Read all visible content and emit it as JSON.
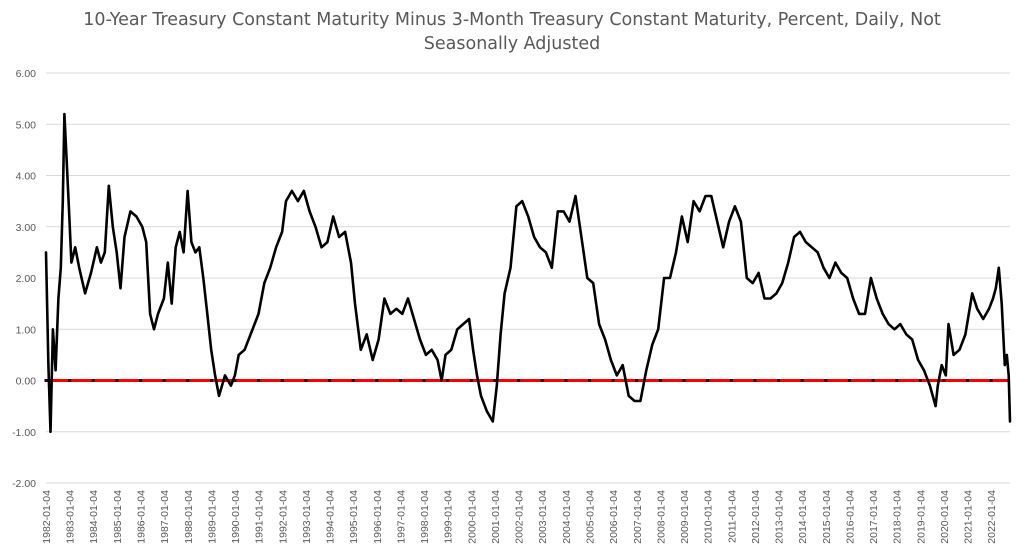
{
  "chart_data": {
    "type": "line",
    "title_line1": "10-Year Treasury Constant Maturity Minus 3-Month Treasury Constant Maturity, Percent, Daily, Not",
    "title_line2": "Seasonally Adjusted",
    "xlabel": "",
    "ylabel": "",
    "ylim": [
      -2.0,
      6.0
    ],
    "yticks": [
      "6.00",
      "5.00",
      "4.00",
      "3.00",
      "2.00",
      "1.00",
      "0.00",
      "-1.00",
      "-2.00"
    ],
    "ytick_values": [
      6,
      5,
      4,
      3,
      2,
      1,
      0,
      -1,
      -2
    ],
    "grid": true,
    "legend": "none",
    "xticks": [
      "1982-01-04",
      "1983-01-04",
      "1984-01-04",
      "1985-01-04",
      "1986-01-04",
      "1987-01-04",
      "1988-01-04",
      "1989-01-04",
      "1990-01-04",
      "1991-01-04",
      "1992-01-04",
      "1993-01-04",
      "1994-01-04",
      "1995-01-04",
      "1996-01-04",
      "1997-01-04",
      "1998-01-04",
      "1999-01-04",
      "2000-01-04",
      "2001-01-04",
      "2002-01-04",
      "2003-01-04",
      "2004-01-04",
      "2005-01-04",
      "2006-01-04",
      "2007-01-04",
      "2008-01-04",
      "2009-01-04",
      "2010-01-04",
      "2011-01-04",
      "2012-01-04",
      "2013-01-04",
      "2014-01-04",
      "2015-01-04",
      "2016-01-04",
      "2017-01-04",
      "2018-01-04",
      "2019-01-04",
      "2020-01-04",
      "2021-01-04",
      "2022-01-04"
    ],
    "x_range": [
      "1982-01-04",
      "2022-10-21"
    ],
    "series": [
      {
        "color": "#000000",
        "points": [
          [
            "1982-01-04",
            2.5
          ],
          [
            "1982-02-10",
            0.3
          ],
          [
            "1982-03-15",
            -1.0
          ],
          [
            "1982-04-20",
            1.0
          ],
          [
            "1982-06-01",
            0.2
          ],
          [
            "1982-07-15",
            1.6
          ],
          [
            "1982-08-20",
            2.2
          ],
          [
            "1982-09-20",
            3.5
          ],
          [
            "1982-10-15",
            5.2
          ],
          [
            "1982-11-15",
            4.4
          ],
          [
            "1982-12-20",
            3.5
          ],
          [
            "1983-02-01",
            2.3
          ],
          [
            "1983-04-01",
            2.6
          ],
          [
            "1983-06-01",
            2.2
          ],
          [
            "1983-09-01",
            1.7
          ],
          [
            "1983-12-01",
            2.1
          ],
          [
            "1984-03-01",
            2.6
          ],
          [
            "1984-05-01",
            2.3
          ],
          [
            "1984-07-01",
            2.5
          ],
          [
            "1984-09-01",
            3.8
          ],
          [
            "1984-11-01",
            3.0
          ],
          [
            "1985-01-01",
            2.5
          ],
          [
            "1985-03-01",
            1.8
          ],
          [
            "1985-05-01",
            2.8
          ],
          [
            "1985-08-01",
            3.3
          ],
          [
            "1985-11-01",
            3.2
          ],
          [
            "1986-02-01",
            3.0
          ],
          [
            "1986-04-01",
            2.7
          ],
          [
            "1986-06-01",
            1.3
          ],
          [
            "1986-08-01",
            1.0
          ],
          [
            "1986-10-01",
            1.3
          ],
          [
            "1987-01-01",
            1.6
          ],
          [
            "1987-03-01",
            2.3
          ],
          [
            "1987-05-01",
            1.5
          ],
          [
            "1987-07-01",
            2.6
          ],
          [
            "1987-09-01",
            2.9
          ],
          [
            "1987-11-01",
            2.5
          ],
          [
            "1988-01-01",
            3.7
          ],
          [
            "1988-03-01",
            2.7
          ],
          [
            "1988-05-01",
            2.5
          ],
          [
            "1988-07-01",
            2.6
          ],
          [
            "1988-09-01",
            2.0
          ],
          [
            "1988-11-01",
            1.3
          ],
          [
            "1989-01-01",
            0.6
          ],
          [
            "1989-03-01",
            0.1
          ],
          [
            "1989-05-01",
            -0.3
          ],
          [
            "1989-08-01",
            0.1
          ],
          [
            "1989-11-01",
            -0.1
          ],
          [
            "1990-01-01",
            0.1
          ],
          [
            "1990-03-01",
            0.5
          ],
          [
            "1990-06-01",
            0.6
          ],
          [
            "1990-09-01",
            0.9
          ],
          [
            "1991-01-01",
            1.3
          ],
          [
            "1991-04-01",
            1.9
          ],
          [
            "1991-07-01",
            2.2
          ],
          [
            "1991-10-01",
            2.6
          ],
          [
            "1992-01-01",
            2.9
          ],
          [
            "1992-03-01",
            3.5
          ],
          [
            "1992-06-01",
            3.7
          ],
          [
            "1992-09-01",
            3.5
          ],
          [
            "1992-12-01",
            3.7
          ],
          [
            "1993-03-01",
            3.3
          ],
          [
            "1993-06-01",
            3.0
          ],
          [
            "1993-09-01",
            2.6
          ],
          [
            "1993-12-01",
            2.7
          ],
          [
            "1994-03-01",
            3.2
          ],
          [
            "1994-06-01",
            2.8
          ],
          [
            "1994-09-01",
            2.9
          ],
          [
            "1994-12-01",
            2.3
          ],
          [
            "1995-02-01",
            1.5
          ],
          [
            "1995-05-01",
            0.6
          ],
          [
            "1995-08-01",
            0.9
          ],
          [
            "1995-11-01",
            0.4
          ],
          [
            "1996-02-01",
            0.8
          ],
          [
            "1996-05-01",
            1.6
          ],
          [
            "1996-08-01",
            1.3
          ],
          [
            "1996-11-01",
            1.4
          ],
          [
            "1997-02-01",
            1.3
          ],
          [
            "1997-05-01",
            1.6
          ],
          [
            "1997-08-01",
            1.2
          ],
          [
            "1997-11-01",
            0.8
          ],
          [
            "1998-02-01",
            0.5
          ],
          [
            "1998-05-01",
            0.6
          ],
          [
            "1998-08-01",
            0.4
          ],
          [
            "1998-10-01",
            0.0
          ],
          [
            "1998-12-01",
            0.5
          ],
          [
            "1999-03-01",
            0.6
          ],
          [
            "1999-06-01",
            1.0
          ],
          [
            "1999-09-01",
            1.1
          ],
          [
            "1999-12-01",
            1.2
          ],
          [
            "2000-02-01",
            0.6
          ],
          [
            "2000-04-01",
            0.1
          ],
          [
            "2000-06-01",
            -0.3
          ],
          [
            "2000-09-01",
            -0.6
          ],
          [
            "2000-12-01",
            -0.8
          ],
          [
            "2001-02-01",
            -0.1
          ],
          [
            "2001-04-01",
            0.9
          ],
          [
            "2001-06-01",
            1.7
          ],
          [
            "2001-09-01",
            2.2
          ],
          [
            "2001-12-01",
            3.4
          ],
          [
            "2002-03-01",
            3.5
          ],
          [
            "2002-06-01",
            3.2
          ],
          [
            "2002-09-01",
            2.8
          ],
          [
            "2002-12-01",
            2.6
          ],
          [
            "2003-03-01",
            2.5
          ],
          [
            "2003-06-01",
            2.2
          ],
          [
            "2003-09-01",
            3.3
          ],
          [
            "2003-12-01",
            3.3
          ],
          [
            "2004-03-01",
            3.1
          ],
          [
            "2004-06-01",
            3.6
          ],
          [
            "2004-09-01",
            2.8
          ],
          [
            "2004-12-01",
            2.0
          ],
          [
            "2005-03-01",
            1.9
          ],
          [
            "2005-06-01",
            1.1
          ],
          [
            "2005-09-01",
            0.8
          ],
          [
            "2005-12-01",
            0.4
          ],
          [
            "2006-03-01",
            0.1
          ],
          [
            "2006-06-01",
            0.3
          ],
          [
            "2006-09-01",
            -0.3
          ],
          [
            "2006-12-01",
            -0.4
          ],
          [
            "2007-03-01",
            -0.4
          ],
          [
            "2007-06-01",
            0.2
          ],
          [
            "2007-09-01",
            0.7
          ],
          [
            "2007-12-01",
            1.0
          ],
          [
            "2008-03-01",
            2.0
          ],
          [
            "2008-06-01",
            2.0
          ],
          [
            "2008-09-01",
            2.5
          ],
          [
            "2008-12-01",
            3.2
          ],
          [
            "2009-03-01",
            2.7
          ],
          [
            "2009-06-01",
            3.5
          ],
          [
            "2009-09-01",
            3.3
          ],
          [
            "2009-12-01",
            3.6
          ],
          [
            "2010-03-01",
            3.6
          ],
          [
            "2010-06-01",
            3.1
          ],
          [
            "2010-09-01",
            2.6
          ],
          [
            "2010-12-01",
            3.1
          ],
          [
            "2011-03-01",
            3.4
          ],
          [
            "2011-06-01",
            3.1
          ],
          [
            "2011-09-01",
            2.0
          ],
          [
            "2011-12-01",
            1.9
          ],
          [
            "2012-03-01",
            2.1
          ],
          [
            "2012-06-01",
            1.6
          ],
          [
            "2012-09-01",
            1.6
          ],
          [
            "2012-12-01",
            1.7
          ],
          [
            "2013-03-01",
            1.9
          ],
          [
            "2013-06-01",
            2.3
          ],
          [
            "2013-09-01",
            2.8
          ],
          [
            "2013-12-01",
            2.9
          ],
          [
            "2014-03-01",
            2.7
          ],
          [
            "2014-06-01",
            2.6
          ],
          [
            "2014-09-01",
            2.5
          ],
          [
            "2014-12-01",
            2.2
          ],
          [
            "2015-03-01",
            2.0
          ],
          [
            "2015-06-01",
            2.3
          ],
          [
            "2015-09-01",
            2.1
          ],
          [
            "2015-12-01",
            2.0
          ],
          [
            "2016-03-01",
            1.6
          ],
          [
            "2016-06-01",
            1.3
          ],
          [
            "2016-09-01",
            1.3
          ],
          [
            "2016-12-01",
            2.0
          ],
          [
            "2017-03-01",
            1.6
          ],
          [
            "2017-06-01",
            1.3
          ],
          [
            "2017-09-01",
            1.1
          ],
          [
            "2017-12-01",
            1.0
          ],
          [
            "2018-03-01",
            1.1
          ],
          [
            "2018-06-01",
            0.9
          ],
          [
            "2018-09-01",
            0.8
          ],
          [
            "2018-12-01",
            0.4
          ],
          [
            "2019-03-01",
            0.2
          ],
          [
            "2019-06-01",
            -0.1
          ],
          [
            "2019-08-28",
            -0.5
          ],
          [
            "2019-10-01",
            -0.1
          ],
          [
            "2019-12-01",
            0.3
          ],
          [
            "2020-02-01",
            0.1
          ],
          [
            "2020-03-15",
            1.1
          ],
          [
            "2020-06-01",
            0.5
          ],
          [
            "2020-09-01",
            0.6
          ],
          [
            "2020-12-01",
            0.9
          ],
          [
            "2021-03-15",
            1.7
          ],
          [
            "2021-06-01",
            1.4
          ],
          [
            "2021-09-01",
            1.2
          ],
          [
            "2021-12-01",
            1.4
          ],
          [
            "2022-02-01",
            1.6
          ],
          [
            "2022-03-15",
            1.8
          ],
          [
            "2022-05-01",
            2.2
          ],
          [
            "2022-06-15",
            1.5
          ],
          [
            "2022-08-01",
            0.3
          ],
          [
            "2022-09-01",
            0.5
          ],
          [
            "2022-10-01",
            0.1
          ],
          [
            "2022-10-21",
            -0.8
          ]
        ]
      }
    ],
    "reference_line": {
      "y": 0.0,
      "color": "#ff0000"
    }
  }
}
